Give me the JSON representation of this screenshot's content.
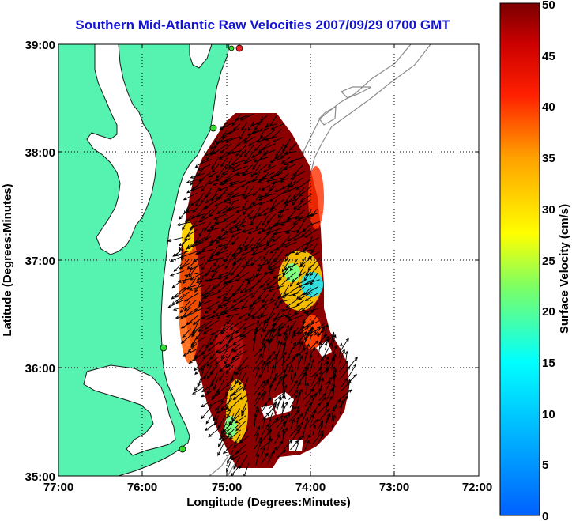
{
  "title": "Southern Mid-Atlantic Raw Velocities 2007/09/29 0700 GMT",
  "x_axis": {
    "label": "Longitude (Degrees:Minutes)",
    "ticks": [
      "77:00",
      "76:00",
      "75:00",
      "74:00",
      "73:00",
      "72:00"
    ]
  },
  "y_axis": {
    "label": "Latitude (Degrees:Minutes)",
    "ticks": [
      "39:00",
      "38:00",
      "37:00",
      "36:00",
      "35:00"
    ]
  },
  "colorbar": {
    "label": "Surface Velocity (cm/s)",
    "ticks": [
      "50",
      "45",
      "40",
      "35",
      "30",
      "25",
      "20",
      "15",
      "10",
      "5",
      "0"
    ],
    "colormap": "jet",
    "range": [
      0,
      50
    ]
  },
  "colors": {
    "title": "#1414d4",
    "land": "#55f2b0",
    "coastline": "#1a1a1a",
    "bathymetry_contour": "#8c8c8c",
    "station_marker": "#33dd33",
    "station_marker_alt": "#ee2222"
  },
  "map_extent": {
    "longitude_west_deg": -77,
    "longitude_east_deg": -72,
    "latitude_south_deg": 35,
    "latitude_north_deg": 39
  },
  "grid": "dotted"
}
